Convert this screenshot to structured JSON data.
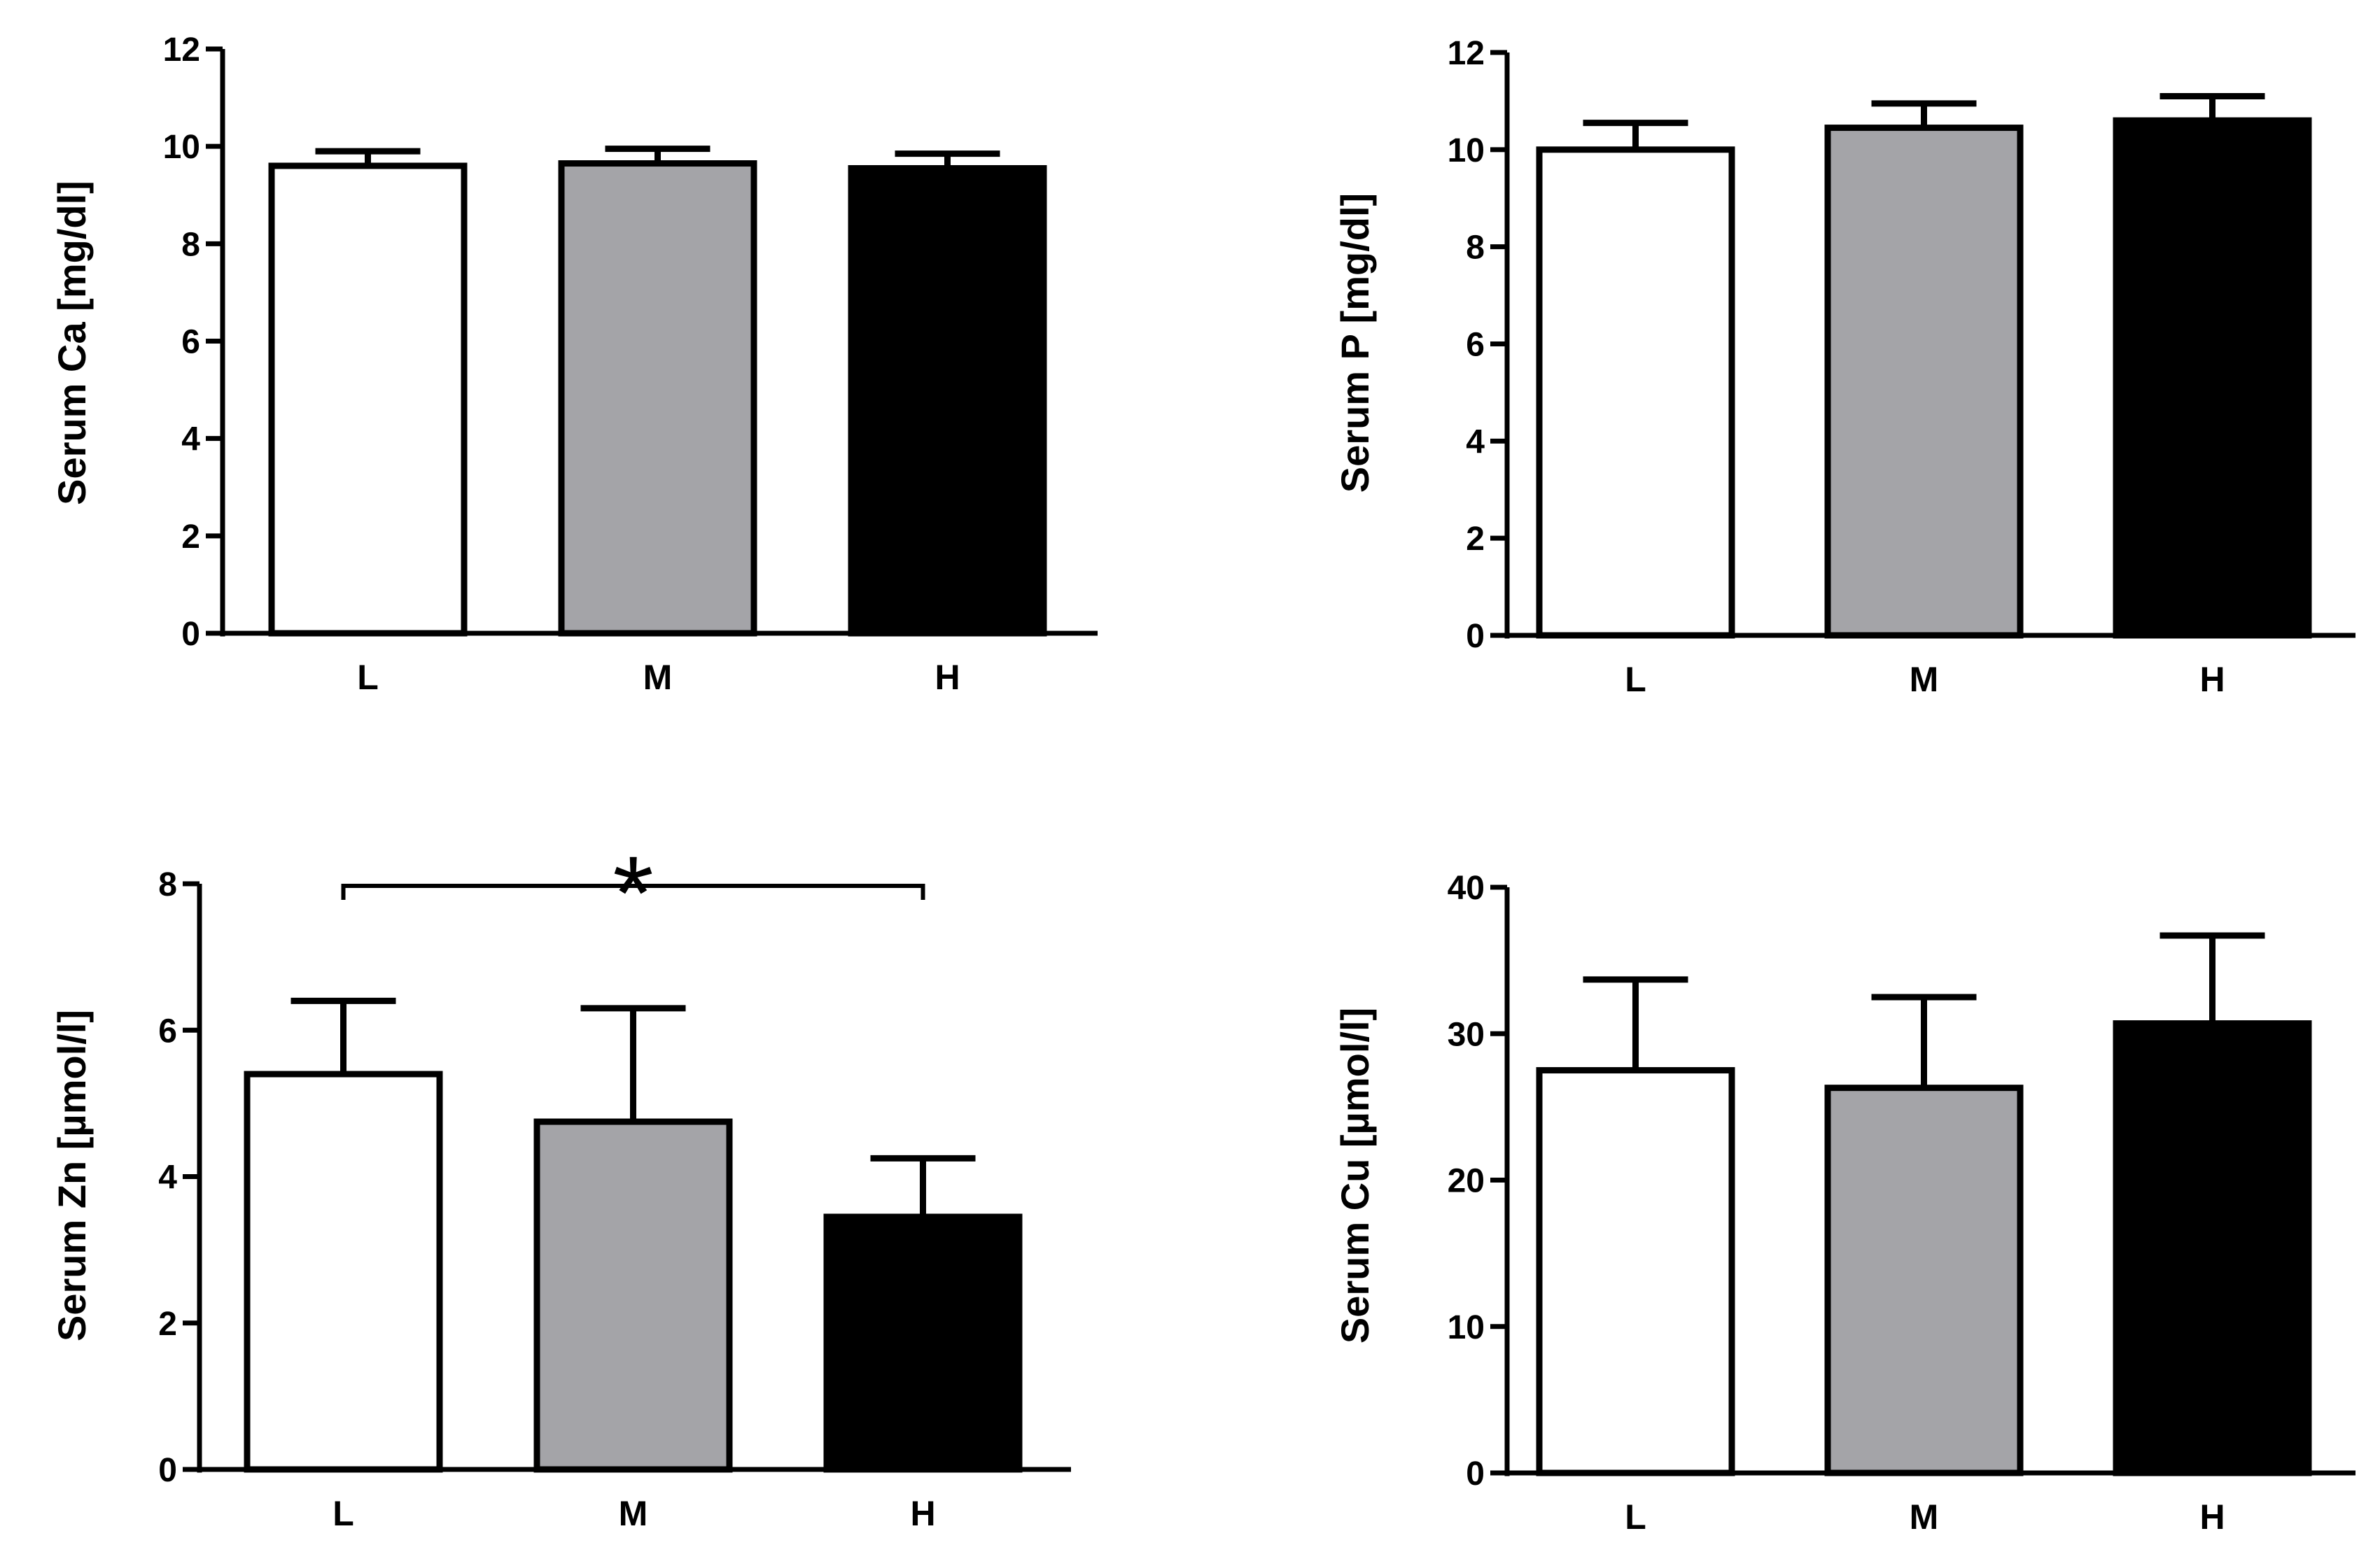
{
  "chart_data": [
    {
      "type": "bar",
      "ylabel": "Serum Ca [mg/dl]",
      "categories": [
        "L",
        "M",
        "H"
      ],
      "values": [
        9.6,
        9.65,
        9.55
      ],
      "errors": [
        0.3,
        0.3,
        0.3
      ],
      "ylim": [
        0,
        12
      ],
      "yticks": [
        "0",
        "2",
        "4",
        "6",
        "8",
        "10",
        "12"
      ],
      "colors": [
        "#ffffff",
        "#a4a4a8",
        "#000000"
      ]
    },
    {
      "type": "bar",
      "ylabel": "Serum P [mg/dl]",
      "categories": [
        "L",
        "M",
        "H"
      ],
      "values": [
        10.0,
        10.45,
        10.6
      ],
      "errors": [
        0.55,
        0.5,
        0.5
      ],
      "ylim": [
        0,
        12
      ],
      "yticks": [
        "0",
        "2",
        "4",
        "6",
        "8",
        "10",
        "12"
      ],
      "colors": [
        "#ffffff",
        "#a4a4a8",
        "#000000"
      ]
    },
    {
      "type": "bar",
      "ylabel": "Serum Zn [µmol/l]",
      "categories": [
        "L",
        "M",
        "H"
      ],
      "values": [
        5.4,
        4.75,
        3.45
      ],
      "errors": [
        1.0,
        1.55,
        0.8
      ],
      "ylim": [
        0,
        8
      ],
      "yticks": [
        "0",
        "2",
        "4",
        "6",
        "8"
      ],
      "colors": [
        "#ffffff",
        "#a4a4a8",
        "#000000"
      ],
      "significance": {
        "from": "L",
        "to": "H",
        "label": "*"
      }
    },
    {
      "type": "bar",
      "ylabel": "Serum Cu [µmol/l]",
      "categories": [
        "L",
        "M",
        "H"
      ],
      "values": [
        27.5,
        26.3,
        30.7
      ],
      "errors": [
        6.2,
        6.2,
        6.0
      ],
      "ylim": [
        0,
        40
      ],
      "yticks": [
        "0",
        "10",
        "20",
        "30",
        "40"
      ],
      "colors": [
        "#ffffff",
        "#a4a4a8",
        "#000000"
      ]
    }
  ]
}
